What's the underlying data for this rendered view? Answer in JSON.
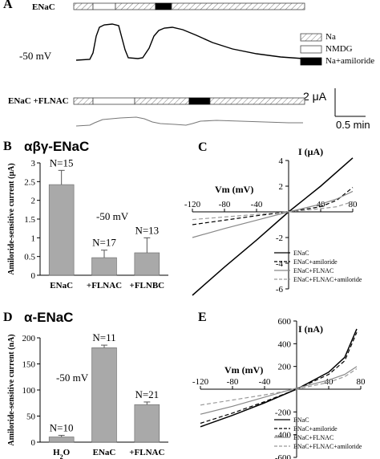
{
  "panel_a": {
    "letter": "A",
    "row1_label": "ENaC",
    "row2_label": "ENaC +FLNAC",
    "voltage_label": "-50 mV",
    "legend": [
      {
        "label": "Na",
        "pattern": "hatch"
      },
      {
        "label": "NMDG",
        "pattern": "white"
      },
      {
        "label": "Na+amiloride",
        "pattern": "black"
      }
    ],
    "scale_current": "2 μA",
    "scale_time": "0.5 min"
  },
  "panel_b": {
    "letter": "B",
    "title": "αβγ-ENaC",
    "voltage_label": "-50 mV"
  },
  "panel_c": {
    "letter": "C",
    "ylabel": "I (μA)",
    "xlabel": "Vm (mV)"
  },
  "panel_d": {
    "letter": "D",
    "title": "α-ENaC",
    "voltage_label": "-50 mV"
  },
  "panel_e": {
    "letter": "E",
    "ylabel": "I (nA)",
    "xlabel": "Vm (mV)"
  },
  "chart_data": [
    {
      "id": "B",
      "type": "bar",
      "categories": [
        "ENaC",
        "+FLNAC",
        "+FLNBC"
      ],
      "values": [
        2.42,
        0.47,
        0.6
      ],
      "errors": [
        0.38,
        0.2,
        0.4
      ],
      "n_labels": [
        "N=15",
        "N=17",
        "N=13"
      ],
      "ylabel": "Amiloride-sensitive current (μA)",
      "ylim": [
        0,
        3
      ],
      "yticks": [
        "0",
        "0.5",
        "1",
        "1.5",
        "2",
        "2.5",
        "3"
      ],
      "bar_color": "#a9a9a9"
    },
    {
      "id": "D",
      "type": "bar",
      "categories": [
        "H2O",
        "ENaC",
        "+FLNAC"
      ],
      "values": [
        10,
        181,
        72
      ],
      "errors": [
        3,
        5,
        5
      ],
      "n_labels": [
        "N=10",
        "N=11",
        "N=21"
      ],
      "ylabel": "Amiloride-sensitive current (nA)",
      "ylim": [
        0,
        200
      ],
      "yticks": [
        "0",
        "50",
        "100",
        "150",
        "200"
      ],
      "bar_color": "#a9a9a9"
    },
    {
      "id": "C",
      "type": "line",
      "xlim": [
        -120,
        80
      ],
      "ylim": [
        -6,
        4
      ],
      "xticks": [
        "-120",
        "-80",
        "-40",
        "40",
        "80"
      ],
      "yticks": [
        "-6",
        "-4",
        "-2",
        "2",
        "4"
      ],
      "series": [
        {
          "name": "ENaC",
          "dash": "solid",
          "color": "#000000",
          "x": [
            -120,
            -80,
            -40,
            0,
            40,
            80
          ],
          "y": [
            -6.5,
            -4.3,
            -2.2,
            0,
            2,
            4.2
          ]
        },
        {
          "name": "ENaC+amiloride",
          "dash": "dashed",
          "color": "#000000",
          "x": [
            -120,
            -80,
            -40,
            0,
            40,
            60,
            80
          ],
          "y": [
            -1.0,
            -0.65,
            -0.3,
            0,
            0.4,
            0.9,
            1.9
          ]
        },
        {
          "name": "ENaC+FLNAC",
          "dash": "solid",
          "color": "#888888",
          "x": [
            -120,
            -80,
            -40,
            0,
            40,
            60,
            80
          ],
          "y": [
            -2.0,
            -1.3,
            -0.65,
            0,
            0.6,
            1.0,
            1.6
          ]
        },
        {
          "name": "ENaC+FLNAC+amiloride",
          "dash": "dashed",
          "color": "#999999",
          "x": [
            -120,
            -80,
            -40,
            0,
            40,
            60,
            80
          ],
          "y": [
            -0.6,
            -0.4,
            -0.2,
            0,
            0.25,
            0.4,
            0.8
          ]
        }
      ]
    },
    {
      "id": "E",
      "type": "line",
      "xlim": [
        -120,
        80
      ],
      "ylim": [
        -600,
        600
      ],
      "xticks": [
        "-120",
        "-80",
        "-40",
        "40",
        "80"
      ],
      "yticks": [
        "-600",
        "-400",
        "-200",
        "200",
        "400",
        "600"
      ],
      "series": [
        {
          "name": "ENaC",
          "dash": "solid",
          "color": "#000000",
          "x": [
            -120,
            -80,
            -40,
            0,
            40,
            60,
            75
          ],
          "y": [
            -330,
            -230,
            -120,
            0,
            150,
            280,
            530
          ]
        },
        {
          "name": "ENaC+amiloride",
          "dash": "dashed",
          "color": "#000000",
          "x": [
            -120,
            -80,
            -40,
            0,
            40,
            60,
            75
          ],
          "y": [
            -300,
            -210,
            -110,
            0,
            130,
            250,
            500
          ]
        },
        {
          "name": "ENaC+FLNAC",
          "dash": "solid",
          "color": "#888888",
          "x": [
            -120,
            -80,
            -40,
            0,
            40,
            60,
            75
          ],
          "y": [
            -220,
            -150,
            -70,
            10,
            80,
            130,
            200
          ]
        },
        {
          "name": "ENaC+FLNAC+amiloride",
          "dash": "dashed",
          "color": "#999999",
          "x": [
            -120,
            -80,
            -40,
            0,
            40,
            60,
            75
          ],
          "y": [
            -140,
            -95,
            -50,
            0,
            60,
            110,
            180
          ]
        }
      ]
    }
  ]
}
